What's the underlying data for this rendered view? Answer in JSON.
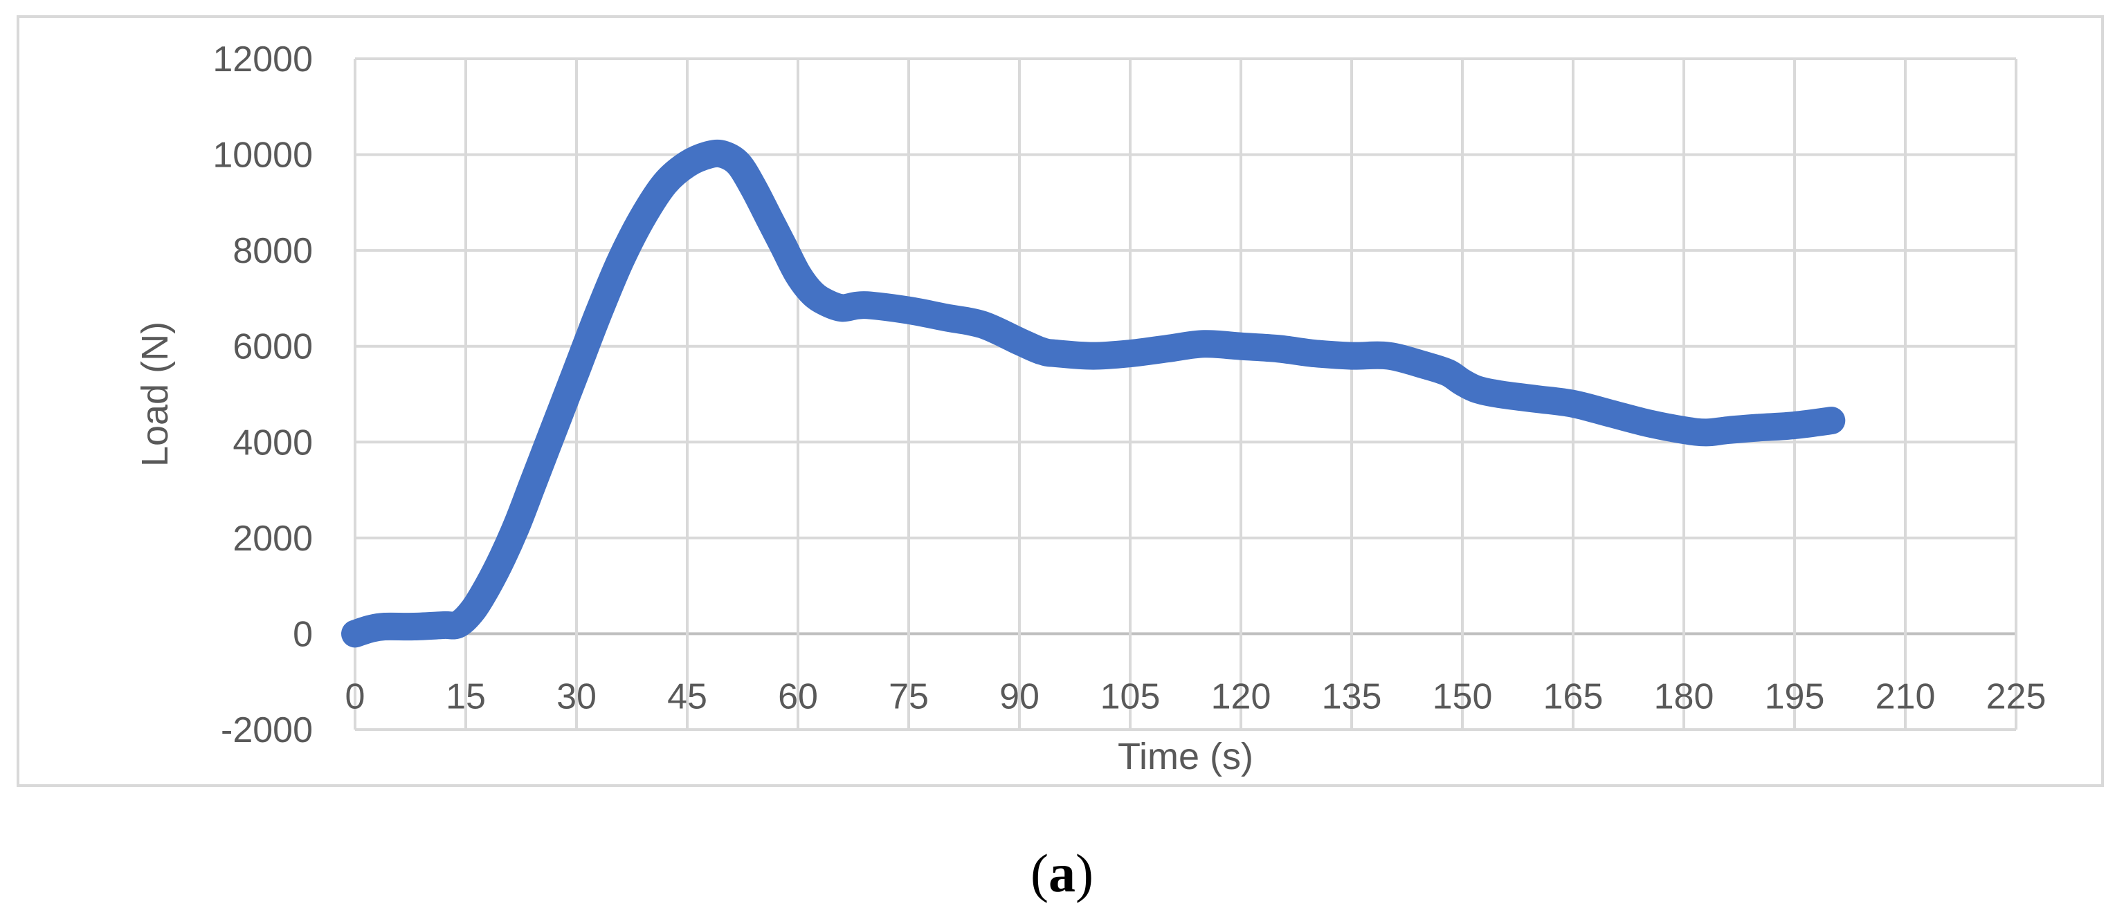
{
  "chart_data": {
    "type": "line",
    "xlabel": "Time (s)",
    "ylabel": "Load (N)",
    "xlim": [
      0,
      225
    ],
    "ylim": [
      -2000,
      12000
    ],
    "x_ticks": [
      0,
      15,
      30,
      45,
      60,
      75,
      90,
      105,
      120,
      135,
      150,
      165,
      180,
      195,
      210,
      225
    ],
    "y_ticks": [
      -2000,
      0,
      2000,
      4000,
      6000,
      8000,
      10000,
      12000
    ],
    "grid": true,
    "series": [
      {
        "color": "#4472c4",
        "x": [
          0,
          2,
          4,
          8,
          12,
          14,
          16,
          18,
          20,
          22,
          24,
          26,
          28,
          30,
          33,
          36,
          39,
          42,
          45,
          48,
          50,
          52,
          54,
          56,
          58,
          60,
          62,
          64,
          66,
          68,
          70,
          75,
          80,
          85,
          90,
          93,
          95,
          100,
          105,
          110,
          115,
          120,
          125,
          130,
          135,
          140,
          145,
          148,
          150,
          152,
          155,
          160,
          165,
          170,
          175,
          180,
          183,
          186,
          190,
          195,
          200
        ],
        "y": [
          0,
          100,
          150,
          150,
          180,
          200,
          500,
          1000,
          1600,
          2300,
          3100,
          3900,
          4700,
          5500,
          6700,
          7800,
          8700,
          9400,
          9800,
          10000,
          10000,
          9800,
          9300,
          8700,
          8100,
          7500,
          7100,
          6900,
          6800,
          6850,
          6850,
          6750,
          6600,
          6450,
          6100,
          5900,
          5850,
          5800,
          5850,
          5950,
          6050,
          6000,
          5950,
          5850,
          5800,
          5800,
          5600,
          5450,
          5250,
          5100,
          5000,
          4900,
          4800,
          4600,
          4400,
          4250,
          4200,
          4250,
          4300,
          4350,
          4450
        ]
      }
    ]
  },
  "caption": {
    "open": "(",
    "letter": "a",
    "close": ")"
  }
}
